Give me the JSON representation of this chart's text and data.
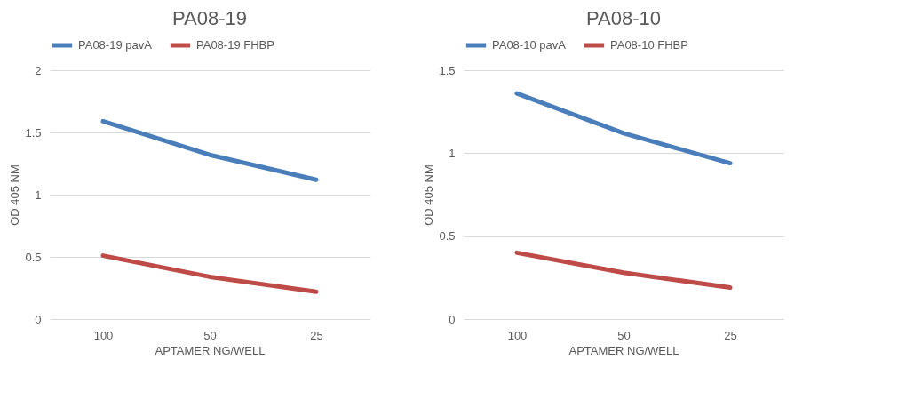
{
  "chart_data": [
    {
      "type": "line",
      "title": "PA08-19",
      "xlabel": "APTAMER  NG/WELL",
      "ylabel": "OD 405 NM",
      "categories": [
        "100",
        "50",
        "25"
      ],
      "ylim": [
        0,
        2
      ],
      "yticks": [
        0,
        0.5,
        1,
        1.5,
        2
      ],
      "grid": "y",
      "legend": "top",
      "marker": "none",
      "line_style": "solid",
      "series": [
        {
          "name": "PA08-19 pavA",
          "color": "#4a7ebb",
          "values": [
            1.59,
            1.32,
            1.12
          ]
        },
        {
          "name": "PA08-19 FHBP",
          "color": "#be4b48",
          "values": [
            0.51,
            0.34,
            0.22
          ]
        }
      ]
    },
    {
      "type": "line",
      "title": "PA08-10",
      "xlabel": "APTAMER  NG/WELL",
      "ylabel": "OD 405 NM",
      "categories": [
        "100",
        "50",
        "25"
      ],
      "ylim": [
        0,
        1.5
      ],
      "yticks": [
        0,
        0.5,
        1,
        1.5
      ],
      "grid": "y",
      "legend": "top",
      "marker": "none",
      "line_style": "solid",
      "series": [
        {
          "name": "PA08-10 pavA",
          "color": "#4a7ebb",
          "values": [
            1.36,
            1.12,
            0.94
          ]
        },
        {
          "name": "PA08-10 FHBP",
          "color": "#be4b48",
          "values": [
            0.4,
            0.28,
            0.19
          ]
        }
      ]
    }
  ]
}
